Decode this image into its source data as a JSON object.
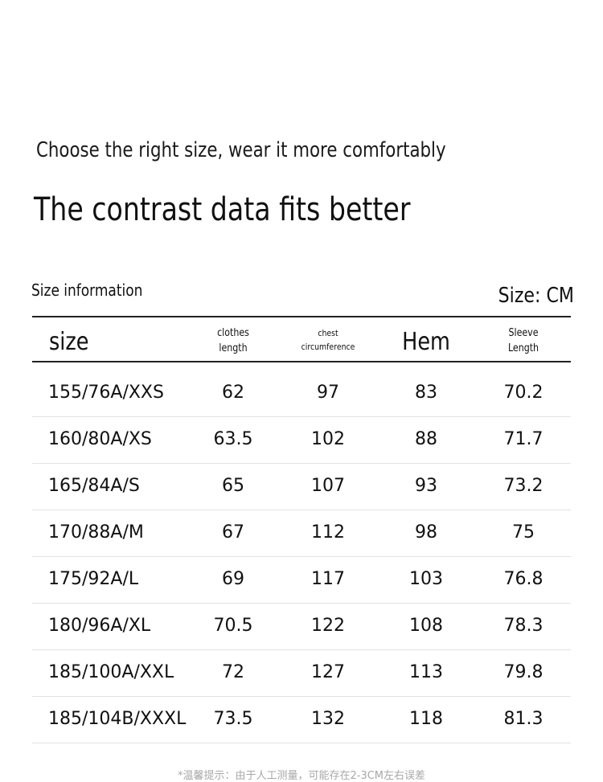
{
  "header": {
    "subtitle": "Choose the right size, wear it more comfortably",
    "title": "The contrast data fits better"
  },
  "table_meta": {
    "label": "Size information",
    "unit": "Size: CM"
  },
  "columns": {
    "size": "size",
    "length_line1": "clothes",
    "length_line2": "length",
    "chest_line1": "chest",
    "chest_line2": "circumference",
    "hem": "Hem",
    "sleeve_line1": "Sleeve",
    "sleeve_line2": "Length"
  },
  "rows": [
    {
      "size": "155/76A/XXS",
      "length": "62",
      "chest": "97",
      "hem": "83",
      "sleeve": "70.2"
    },
    {
      "size": "160/80A/XS",
      "length": "63.5",
      "chest": "102",
      "hem": "88",
      "sleeve": "71.7"
    },
    {
      "size": "165/84A/S",
      "length": "65",
      "chest": "107",
      "hem": "93",
      "sleeve": "73.2"
    },
    {
      "size": "170/88A/M",
      "length": "67",
      "chest": "112",
      "hem": "98",
      "sleeve": "75"
    },
    {
      "size": "175/92A/L",
      "length": "69",
      "chest": "117",
      "hem": "103",
      "sleeve": "76.8"
    },
    {
      "size": "180/96A/XL",
      "length": "70.5",
      "chest": "122",
      "hem": "108",
      "sleeve": "78.3"
    },
    {
      "size": "185/100A/XXL",
      "length": "72",
      "chest": "127",
      "hem": "113",
      "sleeve": "79.8"
    },
    {
      "size": "185/104B/XXXL",
      "length": "73.5",
      "chest": "132",
      "hem": "118",
      "sleeve": "81.3"
    }
  ],
  "footer": {
    "note": "*温馨提示：由于人工测量，可能存在2-3CM左右误差"
  }
}
